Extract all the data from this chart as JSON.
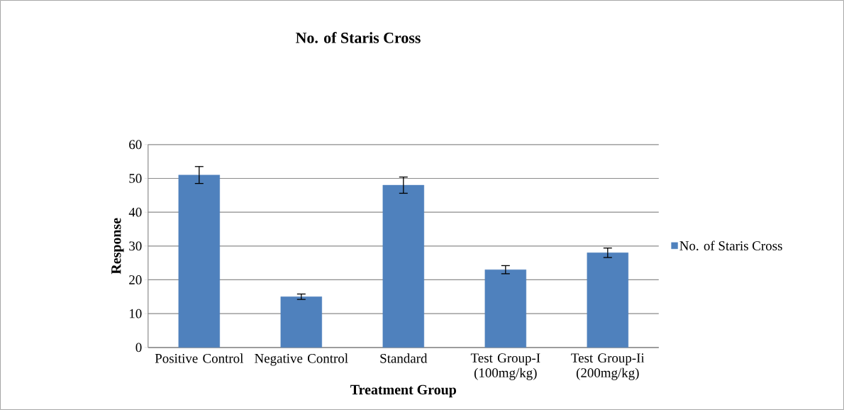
{
  "chart_data": {
    "type": "bar",
    "title": "No. of Staris Cross",
    "xlabel": "Treatment Group",
    "ylabel": "Response",
    "categories": [
      "Positive Control",
      "Negative Control",
      "Standard",
      "Test Group-I (100mg/kg)",
      "Test Group-Ii (200mg/kg)"
    ],
    "series": [
      {
        "name": "No. of Staris Cross",
        "color": "#4f81bd",
        "values": [
          51,
          15,
          48,
          23,
          28
        ],
        "errors": [
          2.5,
          0.8,
          2.4,
          1.2,
          1.4
        ]
      }
    ],
    "ylim": [
      0,
      60
    ],
    "yticks": [
      0,
      10,
      20,
      30,
      40,
      50,
      60
    ],
    "grid": "y",
    "legend": "right"
  }
}
